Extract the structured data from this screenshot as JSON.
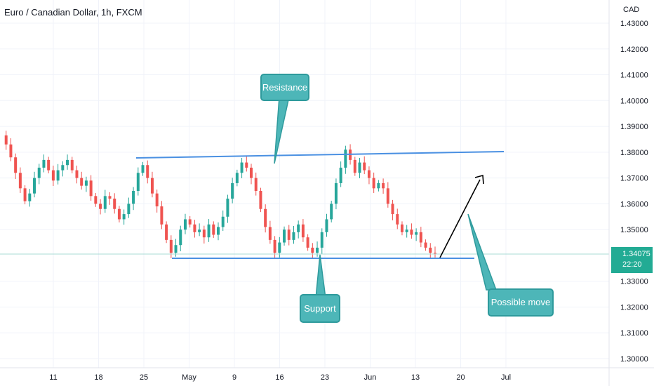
{
  "chart_data": {
    "type": "candlestick",
    "title": "Euro / Canadian Dollar, 1h, FXCM",
    "currency": "CAD",
    "ylim": [
      1.3,
      1.43
    ],
    "y_ticks": [
      "1.43000",
      "1.42000",
      "1.41000",
      "1.40000",
      "1.39000",
      "1.38000",
      "1.37000",
      "1.36000",
      "1.35000",
      "1.33000",
      "1.32000",
      "1.31000",
      "1.30000"
    ],
    "x_ticks": [
      "11",
      "18",
      "25",
      "May",
      "9",
      "16",
      "23",
      "Jun",
      "13",
      "20",
      "Jul"
    ],
    "last_price": "1.34075",
    "countdown": "22:20",
    "colors": {
      "up": "#26a69a",
      "down": "#ef5350",
      "trendline": "#4a90e2",
      "callout": "#4db6b8",
      "price_line": "#22ab94"
    },
    "series": [
      {
        "values": [
          1.3865,
          1.383,
          1.378,
          1.372,
          1.366,
          1.361,
          1.364,
          1.37,
          1.374,
          1.377,
          1.373,
          1.369,
          1.373,
          1.375,
          1.377,
          1.373,
          1.37,
          1.367,
          1.369,
          1.363,
          1.36,
          1.358,
          1.363,
          1.362,
          1.358,
          1.354,
          1.356,
          1.36,
          1.365,
          1.372,
          1.375,
          1.37,
          1.364,
          1.359,
          1.352,
          1.346,
          1.341,
          1.344,
          1.35,
          1.354,
          1.352,
          1.349,
          1.35,
          1.347,
          1.352,
          1.348,
          1.351,
          1.355,
          1.362,
          1.368,
          1.372,
          1.376,
          1.374,
          1.37,
          1.365,
          1.358,
          1.351,
          1.346,
          1.341,
          1.345,
          1.35,
          1.346,
          1.349,
          1.352,
          1.347,
          1.343,
          1.341,
          1.343,
          1.349,
          1.354,
          1.36,
          1.368,
          1.374,
          1.381,
          1.377,
          1.372,
          1.376,
          1.373,
          1.37,
          1.366,
          1.368,
          1.366,
          1.36,
          1.356,
          1.352,
          1.349,
          1.35,
          1.348,
          1.349,
          1.345,
          1.343,
          1.341,
          1.3407
        ]
      }
    ],
    "annotations": [
      {
        "text": "Resistance"
      },
      {
        "text": "Support"
      },
      {
        "text": "Possible move"
      }
    ]
  }
}
